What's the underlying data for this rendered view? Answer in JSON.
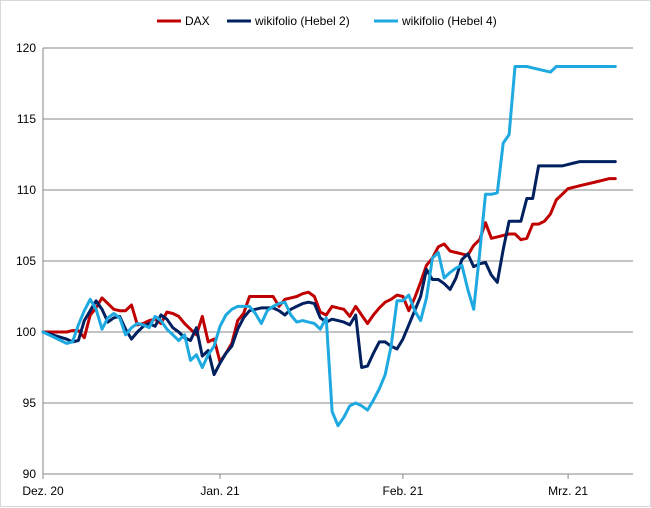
{
  "chart_data": {
    "type": "line",
    "title": "",
    "xlabel": "",
    "ylabel": "",
    "ylim": [
      90,
      120
    ],
    "yticks": [
      90,
      95,
      100,
      105,
      110,
      115,
      120
    ],
    "xlim": [
      0,
      100
    ],
    "xticks": [
      {
        "label": "Dez. 20",
        "x": 0
      },
      {
        "label": "Jan. 21",
        "x": 30
      },
      {
        "label": "Feb. 21",
        "x": 61
      },
      {
        "label": "Mrz. 21",
        "x": 89
      }
    ],
    "grid": "horizontal",
    "legend": "top",
    "series": [
      {
        "name": "DAX",
        "color": "#c00000",
        "x": [
          0,
          4,
          5,
          6,
          7,
          8,
          9,
          10,
          11,
          12,
          13,
          14,
          15,
          16,
          17,
          18,
          19,
          20,
          21,
          22,
          23,
          24,
          25,
          26,
          27,
          28,
          29,
          30,
          31,
          32,
          33,
          34,
          35,
          36,
          37,
          38,
          39,
          40,
          41,
          42,
          43,
          44,
          45,
          46,
          47,
          48,
          49,
          50,
          51,
          52,
          53,
          54,
          55,
          56,
          57,
          58,
          59,
          60,
          61,
          62,
          63,
          64,
          65,
          66,
          67,
          68,
          69,
          70,
          71,
          72,
          73,
          74,
          75,
          76,
          77,
          78,
          79,
          80,
          81,
          82,
          83,
          84,
          85,
          86,
          87,
          88,
          89,
          90,
          91,
          92,
          93,
          94,
          95,
          96,
          97
        ],
        "values": [
          100.0,
          100.0,
          100.1,
          100.1,
          99.6,
          101.2,
          101.7,
          102.4,
          102.0,
          101.6,
          101.5,
          101.5,
          101.9,
          100.5,
          100.6,
          100.8,
          100.9,
          100.6,
          101.4,
          101.3,
          101.1,
          100.6,
          100.2,
          99.8,
          101.1,
          99.3,
          99.5,
          97.9,
          98.5,
          99.2,
          100.8,
          101.3,
          102.5,
          102.5,
          102.5,
          102.5,
          102.5,
          101.8,
          102.3,
          102.4,
          102.5,
          102.7,
          102.8,
          102.5,
          101.4,
          101.2,
          101.8,
          101.7,
          101.6,
          101.1,
          101.8,
          101.2,
          100.6,
          101.2,
          101.7,
          102.1,
          102.3,
          102.6,
          102.5,
          101.5,
          102.4,
          103.5,
          104.7,
          105.2,
          106.0,
          106.2,
          105.7,
          105.6,
          105.5,
          105.4,
          106.1,
          106.5,
          107.7,
          106.6,
          106.7,
          106.8,
          106.9,
          106.9,
          106.5,
          106.6,
          107.6,
          107.6,
          107.8,
          108.3,
          109.3,
          109.7,
          110.1,
          110.2,
          110.3,
          110.4,
          110.5,
          110.6,
          110.7,
          110.8,
          110.8
        ]
      },
      {
        "name": "wikifolio (Hebel 2)",
        "color": "#002060",
        "x": [
          0,
          4,
          5,
          6,
          7,
          8,
          9,
          10,
          11,
          12,
          13,
          14,
          15,
          16,
          17,
          18,
          19,
          20,
          21,
          22,
          23,
          24,
          25,
          26,
          27,
          28,
          29,
          30,
          31,
          32,
          33,
          34,
          35,
          36,
          37,
          38,
          39,
          40,
          41,
          42,
          43,
          44,
          45,
          46,
          47,
          48,
          49,
          50,
          51,
          52,
          53,
          54,
          55,
          56,
          57,
          58,
          59,
          60,
          61,
          62,
          63,
          64,
          65,
          66,
          67,
          68,
          69,
          70,
          71,
          72,
          73,
          74,
          75,
          76,
          77,
          78,
          79,
          80,
          81,
          82,
          83,
          84,
          85,
          86,
          87,
          88,
          89,
          90,
          91,
          92,
          93,
          94,
          95,
          96,
          97
        ],
        "values": [
          100.0,
          99.5,
          99.3,
          99.4,
          100.8,
          101.5,
          102.2,
          101.6,
          100.7,
          101.0,
          101.1,
          100.2,
          99.5,
          100.0,
          100.4,
          100.6,
          100.4,
          101.2,
          100.9,
          100.3,
          100.0,
          99.6,
          99.4,
          100.3,
          98.3,
          98.7,
          97.0,
          97.8,
          98.5,
          99.0,
          100.2,
          101.0,
          101.5,
          101.6,
          101.7,
          101.7,
          101.7,
          101.5,
          101.2,
          101.6,
          101.8,
          102.0,
          102.1,
          102.0,
          101.0,
          100.7,
          100.9,
          100.8,
          100.7,
          100.5,
          101.2,
          97.5,
          97.6,
          98.5,
          99.3,
          99.3,
          99.0,
          98.8,
          99.5,
          100.5,
          101.5,
          102.5,
          104.4,
          103.7,
          103.7,
          103.4,
          103.0,
          103.8,
          105.1,
          105.5,
          104.6,
          104.8,
          104.9,
          104.0,
          103.5,
          105.8,
          107.8,
          107.8,
          107.8,
          109.4,
          109.4,
          111.7,
          111.7,
          111.7,
          111.7,
          111.7,
          111.8,
          111.9,
          112.0,
          112.0,
          112.0,
          112.0,
          112.0,
          112.0,
          112.0
        ]
      },
      {
        "name": "wikifolio (Hebel 4)",
        "color": "#1fa9e1",
        "x": [
          0,
          4,
          5,
          6,
          7,
          8,
          9,
          10,
          11,
          12,
          13,
          14,
          15,
          16,
          17,
          18,
          19,
          20,
          21,
          22,
          23,
          24,
          25,
          26,
          27,
          28,
          29,
          30,
          31,
          32,
          33,
          34,
          35,
          36,
          37,
          38,
          39,
          40,
          41,
          42,
          43,
          44,
          45,
          46,
          47,
          48,
          49,
          50,
          51,
          52,
          53,
          54,
          55,
          56,
          57,
          58,
          59,
          60,
          61,
          62,
          63,
          64,
          65,
          66,
          67,
          68,
          69,
          70,
          71,
          72,
          73,
          74,
          75,
          76,
          77,
          78,
          79,
          80,
          81,
          82,
          83,
          84,
          85,
          86,
          87,
          88,
          89,
          90,
          91,
          92,
          93,
          94,
          95,
          96,
          97
        ],
        "values": [
          100.0,
          99.2,
          99.3,
          100.5,
          101.5,
          102.3,
          101.6,
          100.2,
          101.0,
          101.3,
          101.0,
          99.8,
          100.3,
          100.6,
          100.5,
          100.3,
          101.1,
          100.8,
          100.2,
          99.8,
          99.4,
          99.8,
          98.0,
          98.4,
          97.5,
          98.4,
          99.0,
          100.4,
          101.2,
          101.6,
          101.8,
          101.8,
          101.8,
          101.3,
          100.6,
          101.5,
          101.8,
          102.0,
          102.1,
          101.2,
          100.7,
          100.8,
          100.7,
          100.6,
          100.2,
          101.0,
          94.4,
          93.4,
          94.0,
          94.8,
          95.0,
          94.8,
          94.5,
          95.2,
          96.0,
          97.0,
          99.0,
          102.2,
          102.2,
          102.6,
          101.5,
          100.8,
          102.4,
          105.2,
          105.6,
          103.8,
          104.2,
          104.5,
          104.7,
          103.0,
          101.6,
          105.5,
          109.7,
          109.7,
          109.8,
          113.3,
          113.9,
          118.7,
          118.7,
          118.7,
          118.6,
          118.5,
          118.4,
          118.3,
          118.7,
          118.7,
          118.7,
          118.7,
          118.7,
          118.7,
          118.7,
          118.7,
          118.7,
          118.7,
          118.7
        ]
      }
    ]
  }
}
